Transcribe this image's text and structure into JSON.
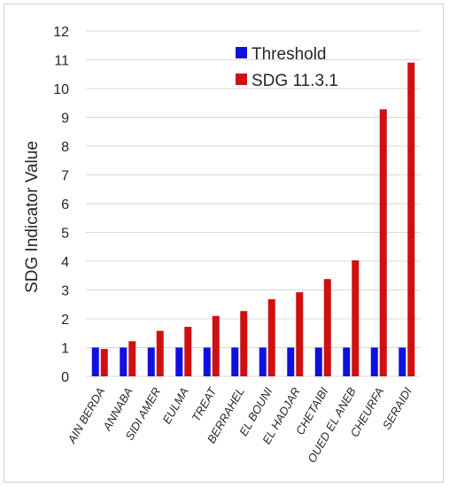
{
  "chart_data": {
    "type": "bar",
    "title": "",
    "xlabel": "",
    "ylabel": "SDG Indicator Value",
    "ylim": [
      0,
      12
    ],
    "yticks": [
      0,
      1,
      2,
      3,
      4,
      5,
      6,
      7,
      8,
      9,
      10,
      11,
      12
    ],
    "grid": true,
    "legend_position": "top-right",
    "categories": [
      "AIN BERDA",
      "ANNABA",
      "SIDI AMER",
      "EULMA",
      "TREAT",
      "BERRAHEL",
      "EL BOUNI",
      "EL HADJAR",
      "CHETAIBI",
      "OUED EL ANEB",
      "CHEURFA",
      "SERAIDI"
    ],
    "series": [
      {
        "name": "Threshold",
        "color": "#1010e0",
        "values": [
          1,
          1,
          1,
          1,
          1,
          1,
          1,
          1,
          1,
          1,
          1,
          1
        ]
      },
      {
        "name": "SDG 11.3.1",
        "color": "#d01010",
        "values": [
          0.95,
          1.22,
          1.58,
          1.72,
          2.1,
          2.27,
          2.68,
          2.92,
          3.38,
          4.03,
          9.28,
          10.9
        ]
      }
    ]
  }
}
